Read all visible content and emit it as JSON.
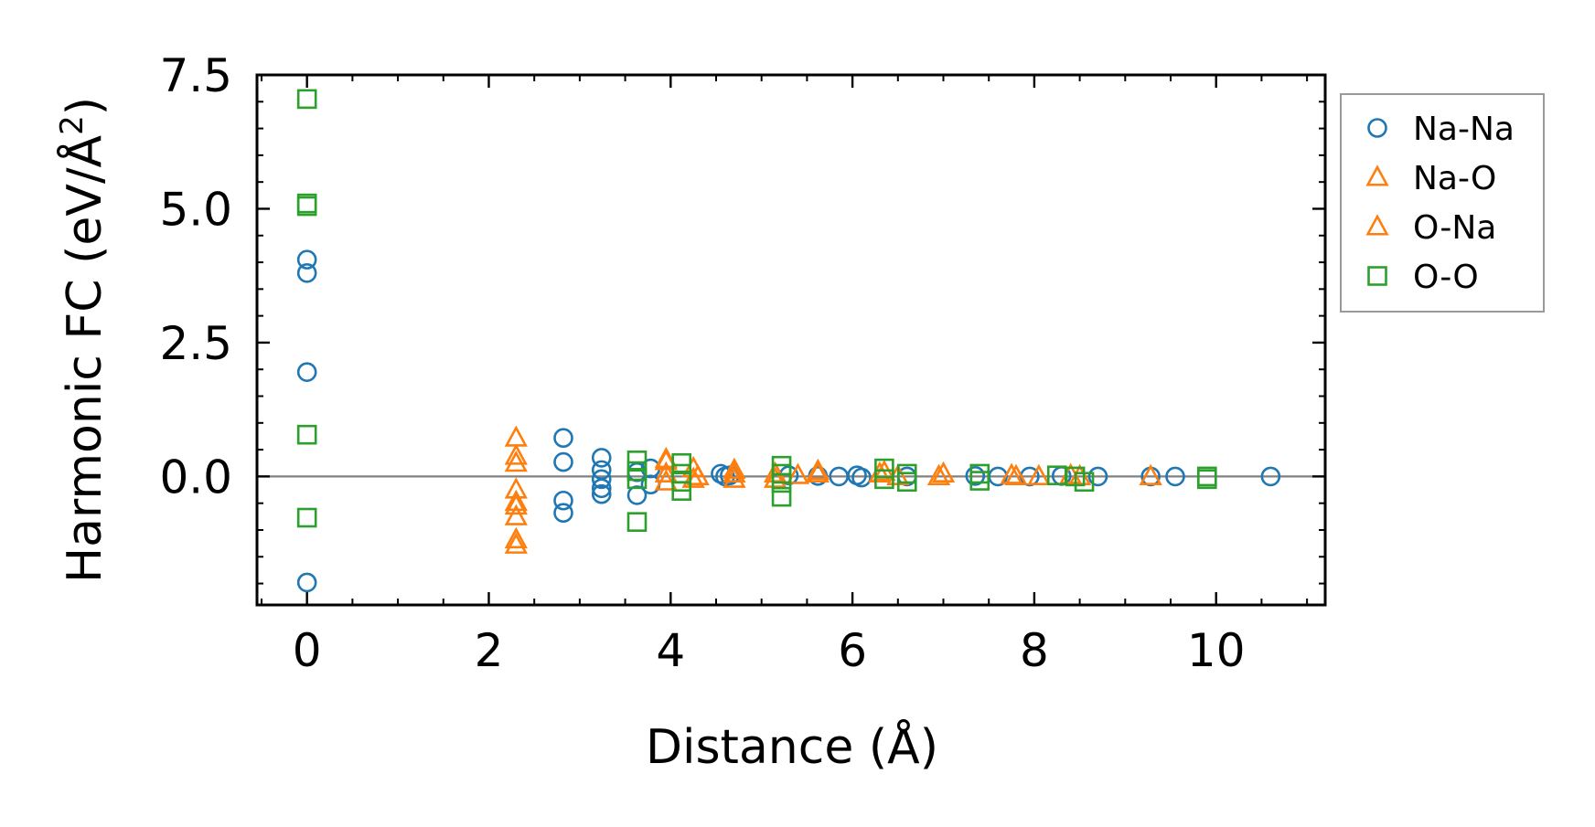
{
  "chart_data": {
    "type": "scatter",
    "xlabel": "Distance (Å)",
    "ylabel_main": "Harmonic FC (eV/Å",
    "ylabel_sup": "2",
    "ylabel_close": ")",
    "xlim": [
      -0.55,
      11.2
    ],
    "ylim": [
      -2.4,
      7.5
    ],
    "xticks": [
      0,
      2,
      4,
      6,
      8,
      10
    ],
    "xtick_labels": [
      "0",
      "2",
      "4",
      "6",
      "8",
      "10"
    ],
    "yticks": [
      0.0,
      2.5,
      5.0,
      7.5
    ],
    "ytick_labels": [
      "0.0",
      "2.5",
      "5.0",
      "7.5"
    ],
    "hline": 0,
    "legend_position": "outside-right-top",
    "series": [
      {
        "name": "Na-Na",
        "marker": "circle",
        "color": "#1f77b4",
        "points": [
          [
            0,
            4.05
          ],
          [
            0,
            3.8
          ],
          [
            0,
            1.95
          ],
          [
            0,
            -1.98
          ],
          [
            2.82,
            0.72
          ],
          [
            2.82,
            0.27
          ],
          [
            2.82,
            -0.45
          ],
          [
            2.82,
            -0.68
          ],
          [
            3.24,
            0.35
          ],
          [
            3.24,
            0.12
          ],
          [
            3.24,
            -0.05
          ],
          [
            3.24,
            -0.22
          ],
          [
            3.24,
            -0.33
          ],
          [
            3.63,
            0.08
          ],
          [
            3.63,
            -0.35
          ],
          [
            3.78,
            0.15
          ],
          [
            3.78,
            -0.15
          ],
          [
            4.55,
            0.05
          ],
          [
            4.6,
            0.0
          ],
          [
            4.65,
            0.02
          ],
          [
            5.3,
            0.02
          ],
          [
            5.62,
            0.01
          ],
          [
            5.85,
            0.0
          ],
          [
            6.05,
            0.02
          ],
          [
            6.1,
            -0.02
          ],
          [
            6.6,
            0.0
          ],
          [
            7.35,
            0.01
          ],
          [
            7.6,
            0.0
          ],
          [
            7.95,
            0.0
          ],
          [
            8.3,
            0.01
          ],
          [
            8.7,
            0.0
          ],
          [
            9.28,
            0.0
          ],
          [
            9.55,
            0.0
          ],
          [
            10.6,
            0.0
          ]
        ]
      },
      {
        "name": "Na-O",
        "marker": "triangle",
        "color": "#ff7f0e",
        "points": [
          [
            2.3,
            0.72
          ],
          [
            2.3,
            0.38
          ],
          [
            2.3,
            0.25
          ],
          [
            2.3,
            -0.25
          ],
          [
            2.3,
            -0.48
          ],
          [
            2.3,
            -0.55
          ],
          [
            2.3,
            -0.75
          ],
          [
            2.3,
            -1.18
          ],
          [
            2.3,
            -1.28
          ],
          [
            3.95,
            0.28
          ],
          [
            3.95,
            0.05
          ],
          [
            4.25,
            0.15
          ],
          [
            4.25,
            -0.05
          ],
          [
            4.7,
            0.12
          ],
          [
            4.7,
            -0.05
          ],
          [
            5.15,
            0.05
          ],
          [
            5.4,
            0.02
          ],
          [
            5.62,
            0.1
          ],
          [
            6.3,
            0.05
          ],
          [
            6.5,
            0.0
          ],
          [
            7.0,
            0.05
          ],
          [
            7.75,
            0.02
          ],
          [
            8.05,
            0.0
          ],
          [
            8.5,
            0.0
          ],
          [
            9.28,
            0.0
          ]
        ]
      },
      {
        "name": "O-Na",
        "marker": "triangle",
        "color": "#ff7f0e",
        "points": [
          [
            3.95,
            0.32
          ],
          [
            3.95,
            -0.1
          ],
          [
            4.3,
            0.0
          ],
          [
            4.7,
            0.05
          ],
          [
            5.15,
            -0.05
          ],
          [
            5.62,
            0.05
          ],
          [
            6.35,
            0.08
          ],
          [
            6.95,
            0.0
          ],
          [
            7.8,
            0.0
          ],
          [
            8.4,
            0.02
          ]
        ]
      },
      {
        "name": "O-O",
        "marker": "square",
        "color": "#2ca02c",
        "points": [
          [
            0,
            7.05
          ],
          [
            0,
            5.1
          ],
          [
            0,
            5.05
          ],
          [
            0,
            0.78
          ],
          [
            0,
            -0.77
          ],
          [
            3.63,
            0.3
          ],
          [
            3.63,
            0.1
          ],
          [
            3.63,
            -0.05
          ],
          [
            3.63,
            -0.85
          ],
          [
            4.12,
            0.25
          ],
          [
            4.12,
            0.05
          ],
          [
            4.12,
            -0.1
          ],
          [
            4.12,
            -0.27
          ],
          [
            5.22,
            0.2
          ],
          [
            5.22,
            0.05
          ],
          [
            5.22,
            -0.12
          ],
          [
            5.22,
            -0.38
          ],
          [
            6.35,
            0.15
          ],
          [
            6.35,
            -0.05
          ],
          [
            6.6,
            0.05
          ],
          [
            6.6,
            -0.1
          ],
          [
            7.4,
            0.05
          ],
          [
            7.4,
            -0.08
          ],
          [
            8.25,
            0.02
          ],
          [
            8.45,
            0.0
          ],
          [
            8.55,
            -0.1
          ],
          [
            9.9,
            0.0
          ],
          [
            9.9,
            -0.05
          ]
        ]
      }
    ]
  }
}
